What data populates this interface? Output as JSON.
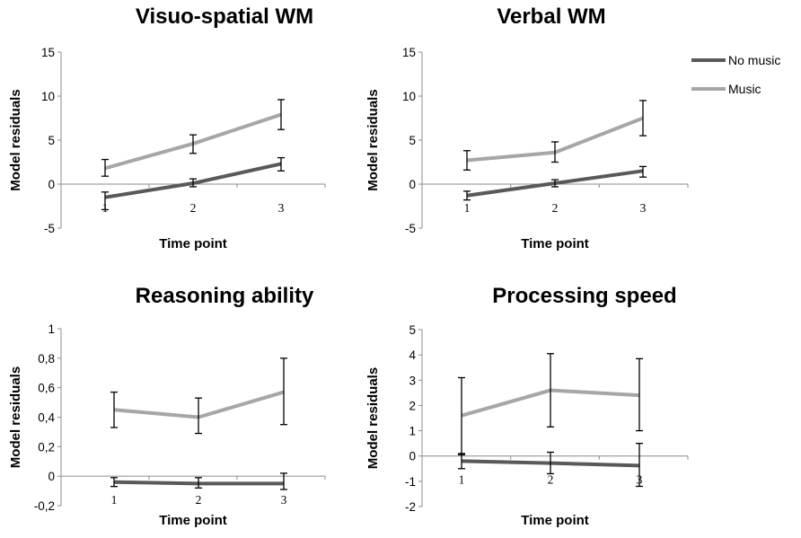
{
  "chart_data": [
    {
      "type": "line",
      "title": "Visuo-spatial WM",
      "xlabel": "Time point",
      "ylabel": "Model residuals",
      "categories": [
        "1",
        "2",
        "3"
      ],
      "ylim": [
        -5,
        15
      ],
      "yticks": [
        "-5",
        "0",
        "5",
        "10",
        "15"
      ],
      "ytick_values": [
        -5,
        0,
        5,
        10,
        15
      ],
      "series": [
        {
          "name": "No music",
          "values": [
            -1.5,
            0.1,
            2.3
          ],
          "err_low": [
            -2.9,
            -0.3,
            1.5
          ],
          "err_high": [
            -0.9,
            0.6,
            3.0
          ]
        },
        {
          "name": "Music",
          "values": [
            1.8,
            4.6,
            7.9
          ],
          "err_low": [
            0.9,
            3.5,
            6.2
          ],
          "err_high": [
            2.8,
            5.6,
            9.6
          ]
        }
      ]
    },
    {
      "type": "line",
      "title": "Verbal WM",
      "xlabel": "Time point",
      "ylabel": "Model residuals",
      "categories": [
        "1",
        "2",
        "3"
      ],
      "ylim": [
        -5,
        15
      ],
      "yticks": [
        "-5",
        "0",
        "5",
        "10",
        "15"
      ],
      "ytick_values": [
        -5,
        0,
        5,
        10,
        15
      ],
      "series": [
        {
          "name": "No music",
          "values": [
            -1.3,
            0.1,
            1.5
          ],
          "err_low": [
            -1.8,
            -0.3,
            0.8
          ],
          "err_high": [
            -0.8,
            0.5,
            2.0
          ]
        },
        {
          "name": "Music",
          "values": [
            2.7,
            3.6,
            7.5
          ],
          "err_low": [
            1.6,
            2.5,
            5.5
          ],
          "err_high": [
            3.8,
            4.8,
            9.5
          ]
        }
      ]
    },
    {
      "type": "line",
      "title": "Reasoning ability",
      "xlabel": "Time point",
      "ylabel": "Model residuals",
      "categories": [
        "1",
        "2",
        "3"
      ],
      "ylim": [
        -0.2,
        1
      ],
      "yticks": [
        "-0,2",
        "0",
        "0,2",
        "0,4",
        "0,6",
        "0,8",
        "1"
      ],
      "ytick_values": [
        -0.2,
        0,
        0.2,
        0.4,
        0.6,
        0.8,
        1
      ],
      "series": [
        {
          "name": "No music",
          "values": [
            -0.04,
            -0.05,
            -0.05
          ],
          "err_low": [
            -0.07,
            -0.08,
            -0.09
          ],
          "err_high": [
            -0.01,
            -0.01,
            0.02
          ]
        },
        {
          "name": "Music",
          "values": [
            0.45,
            0.4,
            0.57
          ],
          "err_low": [
            0.33,
            0.29,
            0.35
          ],
          "err_high": [
            0.57,
            0.53,
            0.8
          ]
        }
      ]
    },
    {
      "type": "line",
      "title": "Processing speed",
      "xlabel": "Time point",
      "ylabel": "Model residuals",
      "categories": [
        "1",
        "2",
        "3"
      ],
      "ylim": [
        -2,
        5
      ],
      "yticks": [
        "-2",
        "-1",
        "0",
        "1",
        "2",
        "3",
        "4",
        "5"
      ],
      "ytick_values": [
        -2,
        -1,
        0,
        1,
        2,
        3,
        4,
        5
      ],
      "series": [
        {
          "name": "No music",
          "values": [
            -0.2,
            -0.28,
            -0.38
          ],
          "err_low": [
            -0.5,
            -0.7,
            -1.2
          ],
          "err_high": [
            0.1,
            0.15,
            0.5
          ]
        },
        {
          "name": "Music",
          "values": [
            1.6,
            2.6,
            2.4
          ],
          "err_low": [
            0.05,
            1.15,
            1.0
          ],
          "err_high": [
            3.1,
            4.05,
            3.85
          ]
        }
      ]
    }
  ],
  "legend": {
    "items": [
      {
        "label": "No music",
        "color": "#595959"
      },
      {
        "label": "Music",
        "color": "#a6a6a6"
      }
    ]
  },
  "colors": {
    "No music": "#595959",
    "Music": "#a6a6a6",
    "axis": "#8c8c8c",
    "error": "#000000"
  }
}
